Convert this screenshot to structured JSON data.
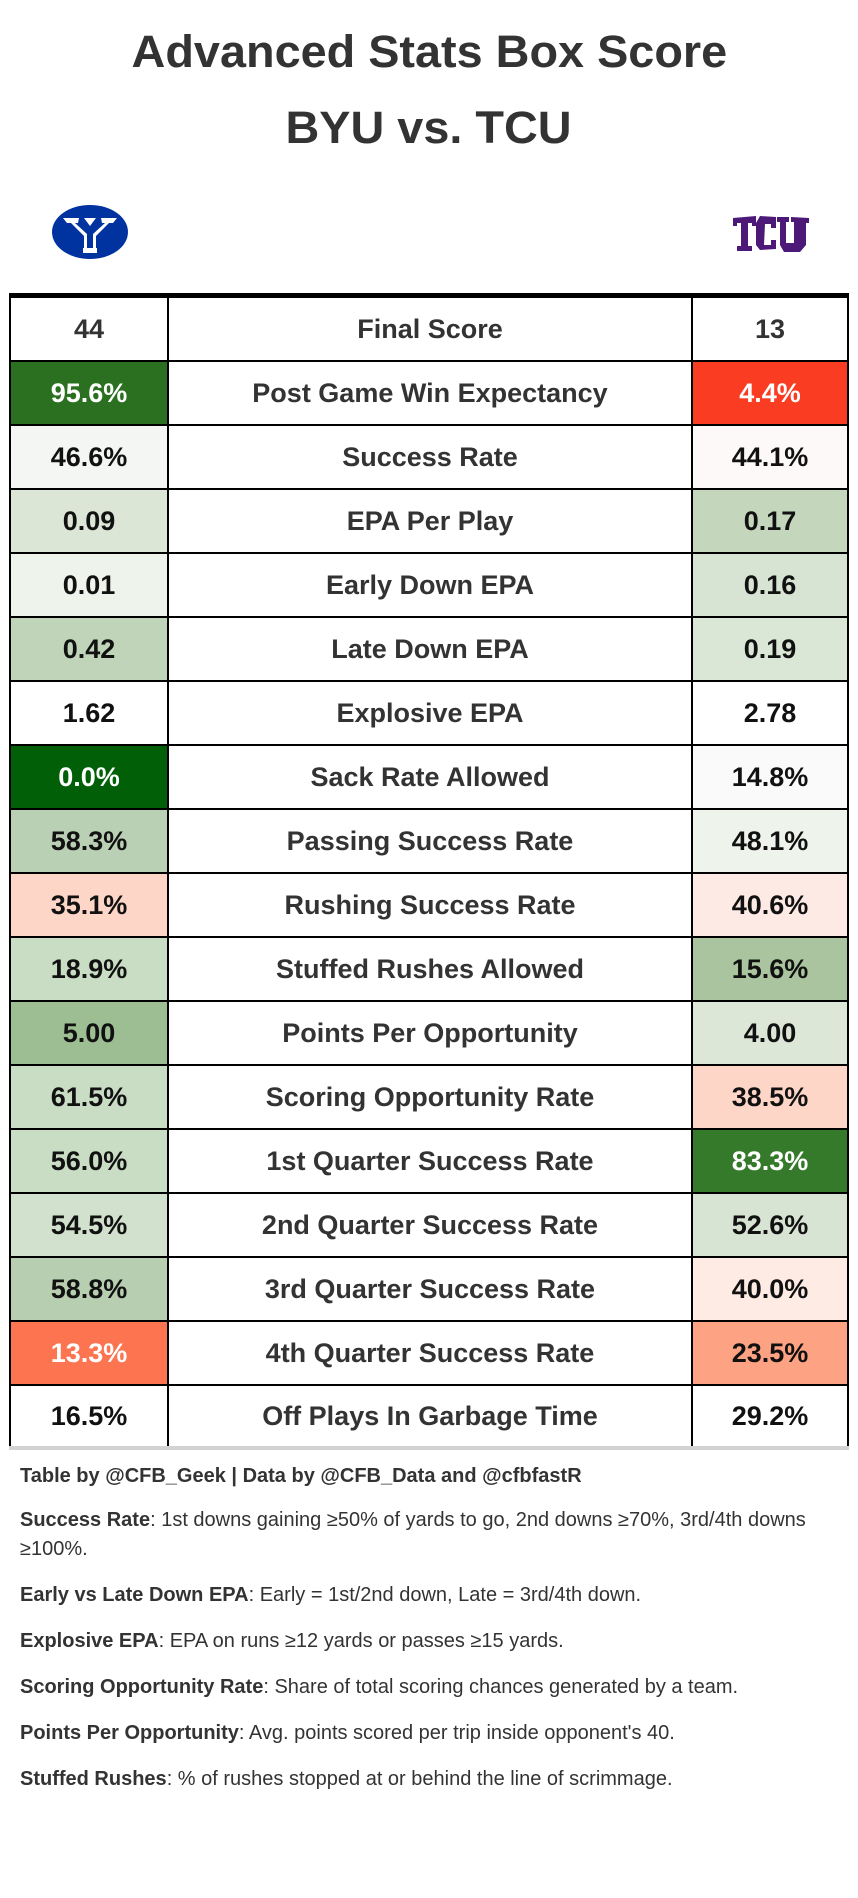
{
  "title": "Advanced Stats Box Score",
  "subtitle": "BYU vs. TCU",
  "teams": {
    "left": {
      "name": "BYU",
      "logo": "byu-logo",
      "color": "#0033a0"
    },
    "right": {
      "name": "TCU",
      "logo": "tcu-logo",
      "color": "#4d1979"
    }
  },
  "table": {
    "rows": [
      {
        "stat": "Final Score",
        "left": "44",
        "right": "13",
        "left_bg": "#ffffff",
        "right_bg": "#ffffff",
        "left_white": false,
        "right_white": false
      },
      {
        "stat": "Post Game Win Expectancy",
        "left": "95.6%",
        "right": "4.4%",
        "left_bg": "#2a7020",
        "right_bg": "#f93c22",
        "left_white": true,
        "right_white": true
      },
      {
        "stat": "Success Rate",
        "left": "46.6%",
        "right": "44.1%",
        "left_bg": "#f3f6f2",
        "right_bg": "#fdf9f8",
        "left_white": false,
        "right_white": false
      },
      {
        "stat": "EPA Per Play",
        "left": "0.09",
        "right": "0.17",
        "left_bg": "#dbe6d7",
        "right_bg": "#c4d7bd",
        "left_white": false,
        "right_white": false
      },
      {
        "stat": "Early Down EPA",
        "left": "0.01",
        "right": "0.16",
        "left_bg": "#eef3ec",
        "right_bg": "#d7e4d3",
        "left_white": false,
        "right_white": false
      },
      {
        "stat": "Late Down EPA",
        "left": "0.42",
        "right": "0.19",
        "left_bg": "#c0d4b9",
        "right_bg": "#dae6d6",
        "left_white": false,
        "right_white": false
      },
      {
        "stat": "Explosive EPA",
        "left": "1.62",
        "right": "2.78",
        "left_bg": "#ffffff",
        "right_bg": "#ffffff",
        "left_white": false,
        "right_white": false
      },
      {
        "stat": "Sack Rate Allowed",
        "left": "0.0%",
        "right": "14.8%",
        "left_bg": "#016007",
        "right_bg": "#fafafa",
        "left_white": true,
        "right_white": false
      },
      {
        "stat": "Passing Success Rate",
        "left": "58.3%",
        "right": "48.1%",
        "left_bg": "#bad0b4",
        "right_bg": "#eef3ec",
        "left_white": false,
        "right_white": false
      },
      {
        "stat": "Rushing Success Rate",
        "left": "35.1%",
        "right": "40.6%",
        "left_bg": "#fdd6c8",
        "right_bg": "#fdeae5",
        "left_white": false,
        "right_white": false
      },
      {
        "stat": "Stuffed Rushes Allowed",
        "left": "18.9%",
        "right": "15.6%",
        "left_bg": "#c9dcc4",
        "right_bg": "#a9c49f",
        "left_white": false,
        "right_white": false
      },
      {
        "stat": "Points Per Opportunity",
        "left": "5.00",
        "right": "4.00",
        "left_bg": "#9dbe93",
        "right_bg": "#dce7d8",
        "left_white": false,
        "right_white": false
      },
      {
        "stat": "Scoring Opportunity Rate",
        "left": "61.5%",
        "right": "38.5%",
        "left_bg": "#c9dcc4",
        "right_bg": "#fdd6c8",
        "left_white": false,
        "right_white": false
      },
      {
        "stat": "1st Quarter Success Rate",
        "left": "56.0%",
        "right": "83.3%",
        "left_bg": "#c9dcc4",
        "right_bg": "#357a2b",
        "left_white": false,
        "right_white": true
      },
      {
        "stat": "2nd Quarter Success Rate",
        "left": "54.5%",
        "right": "52.6%",
        "left_bg": "#d2e1cd",
        "right_bg": "#d8e4d3",
        "left_white": false,
        "right_white": false
      },
      {
        "stat": "3rd Quarter Success Rate",
        "left": "58.8%",
        "right": "40.0%",
        "left_bg": "#b7cfb0",
        "right_bg": "#fdebe4",
        "left_white": false,
        "right_white": false
      },
      {
        "stat": "4th Quarter Success Rate",
        "left": "13.3%",
        "right": "23.5%",
        "left_bg": "#fd7451",
        "right_bg": "#fda283",
        "left_white": true,
        "right_white": false
      },
      {
        "stat": "Off Plays In Garbage Time",
        "left": "16.5%",
        "right": "29.2%",
        "left_bg": "#ffffff",
        "right_bg": "#ffffff",
        "left_white": false,
        "right_white": false
      }
    ]
  },
  "footer": {
    "source": "Table by @CFB_Geek | Data by @CFB_Data and @cfbfastR",
    "notes": [
      {
        "term": "Success Rate",
        "text": ": 1st downs gaining ≥50% of yards to go, 2nd downs ≥70%, 3rd/4th downs ≥100%."
      },
      {
        "term": "Early vs Late Down EPA",
        "text": ": Early = 1st/2nd down, Late = 3rd/4th down."
      },
      {
        "term": "Explosive EPA",
        "text": ": EPA on runs ≥12 yards or passes ≥15 yards."
      },
      {
        "term": "Scoring Opportunity Rate",
        "text": ": Share of total scoring chances generated by a team."
      },
      {
        "term": "Points Per Opportunity",
        "text": ": Avg. points scored per trip inside opponent's 40."
      },
      {
        "term": "Stuffed Rushes",
        "text": ": % of rushes stopped at or behind the line of scrimmage."
      }
    ]
  }
}
